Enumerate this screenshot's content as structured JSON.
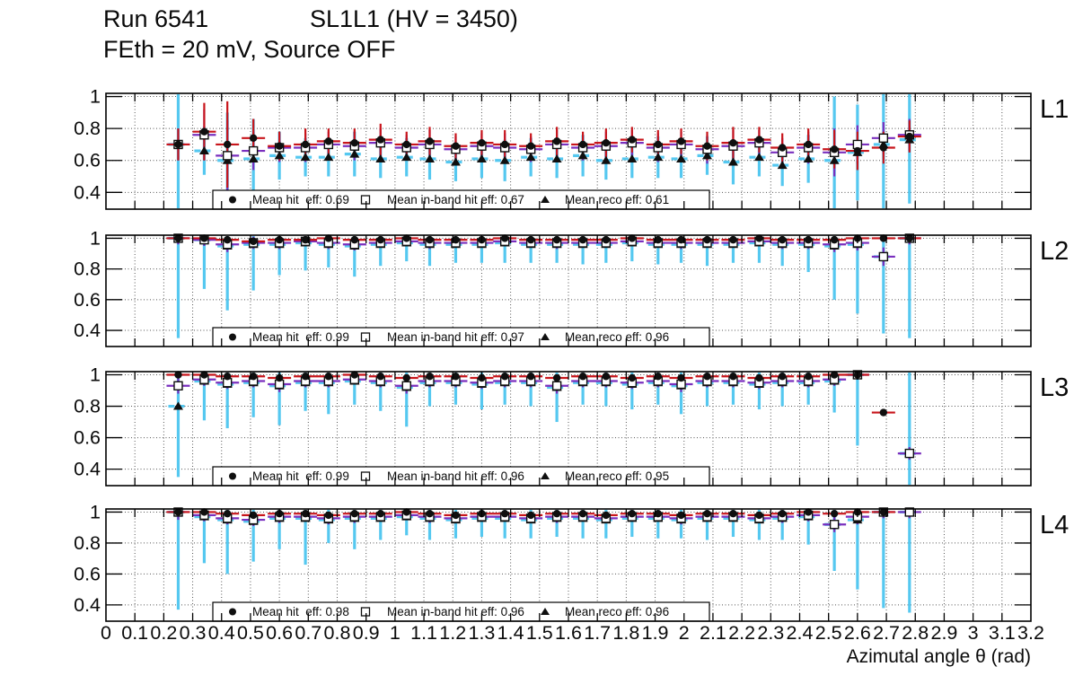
{
  "title": {
    "run": "Run 6541",
    "chamber": "SL1L1 (HV = 3450)",
    "conditions": "FEth = 20 mV, Source OFF"
  },
  "colors": {
    "hit": "#c8151b",
    "inband": "#7a2fbe",
    "reco": "#55c8f0",
    "marker": "#0f0f0f",
    "grid": "#555555",
    "frame": "#000000"
  },
  "chart_data": {
    "type": "errorbar",
    "title": "Run 6541  SL1L1 (HV = 3450)  FEth = 20 mV, Source OFF",
    "xlabel": "Azimutal angle θ (rad)",
    "ylabel": "",
    "xlim": [
      0,
      3.2
    ],
    "ylim": [
      0.295,
      1.02
    ],
    "xtick_step": 0.1,
    "yticks": [
      0.4,
      0.6,
      0.8,
      1
    ],
    "grid": "dotted",
    "legend_position": "bottom-inside",
    "x": [
      0.25,
      0.34,
      0.42,
      0.51,
      0.6,
      0.69,
      0.77,
      0.86,
      0.95,
      1.04,
      1.12,
      1.21,
      1.3,
      1.38,
      1.47,
      1.56,
      1.65,
      1.73,
      1.82,
      1.91,
      1.99,
      2.08,
      2.17,
      2.26,
      2.34,
      2.43,
      2.52,
      2.6,
      2.69,
      2.78
    ],
    "panels": [
      {
        "label": "L1",
        "legend": [
          {
            "marker": "filled-circle",
            "label": "Mean hit  eff: 0.69"
          },
          {
            "marker": "open-square",
            "label": "Mean in-band hit eff: 0.67"
          },
          {
            "marker": "filled-triangle",
            "label": "Mean reco eff: 0.61"
          }
        ],
        "series": [
          {
            "name": "hit",
            "marker": "filled-circle",
            "color_key": "hit",
            "y": [
              0.7,
              0.78,
              0.7,
              0.74,
              0.69,
              0.7,
              0.72,
              0.71,
              0.73,
              0.7,
              0.72,
              0.69,
              0.71,
              0.7,
              0.69,
              0.72,
              0.7,
              0.71,
              0.73,
              0.7,
              0.72,
              0.69,
              0.71,
              0.73,
              0.68,
              0.7,
              0.67,
              0.66,
              0.68,
              0.75
            ],
            "ey": [
              0.1,
              0.18,
              0.27,
              0.12,
              0.09,
              0.1,
              0.08,
              0.09,
              0.1,
              0.08,
              0.09,
              0.08,
              0.08,
              0.09,
              0.08,
              0.09,
              0.08,
              0.09,
              0.08,
              0.09,
              0.08,
              0.09,
              0.1,
              0.08,
              0.09,
              0.1,
              0.12,
              0.12,
              0.1,
              0.1
            ]
          },
          {
            "name": "inband",
            "marker": "open-square",
            "color_key": "inband",
            "y": [
              0.7,
              0.76,
              0.63,
              0.66,
              0.68,
              0.68,
              0.7,
              0.69,
              0.71,
              0.68,
              0.7,
              0.67,
              0.69,
              0.68,
              0.67,
              0.7,
              0.68,
              0.69,
              0.71,
              0.68,
              0.7,
              0.67,
              0.69,
              0.71,
              0.65,
              0.68,
              0.65,
              0.7,
              0.74,
              0.76
            ],
            "ey": [
              0.1,
              0.16,
              0.22,
              0.12,
              0.09,
              0.09,
              0.08,
              0.09,
              0.09,
              0.08,
              0.09,
              0.08,
              0.08,
              0.09,
              0.08,
              0.09,
              0.08,
              0.09,
              0.08,
              0.09,
              0.08,
              0.09,
              0.1,
              0.08,
              0.09,
              0.1,
              0.15,
              0.12,
              0.1,
              0.1
            ]
          },
          {
            "name": "reco",
            "marker": "filled-triangle",
            "color_key": "reco",
            "y": [
              0.7,
              0.66,
              0.6,
              0.61,
              0.63,
              0.62,
              0.62,
              0.64,
              0.61,
              0.62,
              0.61,
              0.59,
              0.61,
              0.6,
              0.62,
              0.61,
              0.63,
              0.6,
              0.61,
              0.62,
              0.61,
              0.63,
              0.59,
              0.62,
              0.57,
              0.61,
              0.6,
              0.65,
              0.7,
              0.73
            ],
            "ey": [
              0.4,
              0.15,
              0.3,
              0.25,
              0.15,
              0.12,
              0.12,
              0.14,
              0.12,
              0.12,
              0.13,
              0.12,
              0.12,
              0.13,
              0.12,
              0.12,
              0.13,
              0.12,
              0.12,
              0.13,
              0.12,
              0.12,
              0.14,
              0.12,
              0.13,
              0.15,
              0.4,
              0.3,
              0.4,
              0.4
            ]
          }
        ]
      },
      {
        "label": "L2",
        "legend": [
          {
            "marker": "filled-circle",
            "label": "Mean hit  eff: 0.99"
          },
          {
            "marker": "open-square",
            "label": "Mean in-band hit eff: 0.97"
          },
          {
            "marker": "filled-triangle",
            "label": "Mean reco eff: 0.96"
          }
        ],
        "series": [
          {
            "name": "hit",
            "marker": "filled-circle",
            "color_key": "hit",
            "y": [
              1.0,
              1.0,
              0.99,
              0.98,
              0.99,
              0.99,
              1.0,
              0.99,
              0.99,
              1.0,
              0.99,
              0.99,
              0.99,
              1.0,
              0.99,
              0.99,
              0.99,
              0.99,
              1.0,
              0.99,
              0.99,
              0.99,
              0.99,
              1.0,
              0.99,
              0.99,
              0.99,
              1.0,
              1.0,
              1.0
            ],
            "ey": [
              0.02,
              0.02,
              0.02,
              0.02,
              0.02,
              0.02,
              0.02,
              0.02,
              0.02,
              0.02,
              0.02,
              0.02,
              0.02,
              0.02,
              0.02,
              0.02,
              0.02,
              0.02,
              0.02,
              0.02,
              0.02,
              0.02,
              0.02,
              0.02,
              0.02,
              0.02,
              0.02,
              0.02,
              0.02,
              0.02
            ]
          },
          {
            "name": "inband",
            "marker": "open-square",
            "color_key": "inband",
            "y": [
              1.0,
              0.99,
              0.96,
              0.97,
              0.97,
              0.98,
              0.97,
              0.96,
              0.97,
              0.98,
              0.97,
              0.97,
              0.97,
              0.98,
              0.97,
              0.97,
              0.97,
              0.97,
              0.98,
              0.97,
              0.97,
              0.97,
              0.97,
              0.98,
              0.97,
              0.97,
              0.96,
              0.97,
              0.88,
              1.0
            ],
            "ey": [
              0.04,
              0.04,
              0.05,
              0.04,
              0.04,
              0.03,
              0.04,
              0.04,
              0.03,
              0.03,
              0.04,
              0.03,
              0.03,
              0.03,
              0.03,
              0.04,
              0.03,
              0.03,
              0.03,
              0.03,
              0.04,
              0.03,
              0.03,
              0.03,
              0.04,
              0.04,
              0.05,
              0.05,
              0.06,
              0.04
            ]
          },
          {
            "name": "reco",
            "marker": "filled-triangle",
            "color_key": "reco",
            "y": [
              1.0,
              0.99,
              0.95,
              0.96,
              0.96,
              0.97,
              0.96,
              0.95,
              0.96,
              0.97,
              0.96,
              0.96,
              0.96,
              0.97,
              0.96,
              0.96,
              0.96,
              0.96,
              0.97,
              0.96,
              0.96,
              0.96,
              0.96,
              0.97,
              0.96,
              0.96,
              0.95,
              0.96,
              0.88,
              1.0
            ],
            "ey": [
              0.65,
              0.32,
              0.42,
              0.3,
              0.2,
              0.18,
              0.15,
              0.2,
              0.14,
              0.12,
              0.14,
              0.12,
              0.12,
              0.13,
              0.12,
              0.12,
              0.13,
              0.12,
              0.12,
              0.13,
              0.12,
              0.14,
              0.12,
              0.13,
              0.14,
              0.18,
              0.35,
              0.45,
              0.5,
              0.65
            ]
          }
        ]
      },
      {
        "label": "L3",
        "legend": [
          {
            "marker": "filled-circle",
            "label": "Mean hit  eff: 0.99"
          },
          {
            "marker": "open-square",
            "label": "Mean in-band hit eff: 0.96"
          },
          {
            "marker": "filled-triangle",
            "label": "Mean reco eff: 0.95"
          }
        ],
        "series": [
          {
            "name": "hit",
            "marker": "filled-circle",
            "color_key": "hit",
            "y": [
              1.0,
              1.0,
              0.99,
              0.99,
              0.98,
              0.99,
              0.99,
              1.0,
              0.99,
              0.98,
              0.99,
              0.99,
              0.98,
              0.99,
              0.99,
              0.98,
              0.99,
              0.99,
              0.98,
              0.99,
              0.98,
              0.99,
              0.99,
              0.98,
              0.99,
              0.99,
              1.0,
              1.0,
              0.76,
              null
            ],
            "ey": [
              0.02,
              0.02,
              0.02,
              0.02,
              0.02,
              0.02,
              0.02,
              0.02,
              0.02,
              0.02,
              0.02,
              0.02,
              0.02,
              0.02,
              0.02,
              0.02,
              0.02,
              0.02,
              0.02,
              0.02,
              0.02,
              0.02,
              0.02,
              0.02,
              0.02,
              0.02,
              0.02,
              0.02,
              0.01,
              null
            ]
          },
          {
            "name": "inband",
            "marker": "open-square",
            "color_key": "inband",
            "y": [
              0.93,
              0.97,
              0.95,
              0.96,
              0.94,
              0.96,
              0.96,
              0.97,
              0.96,
              0.93,
              0.96,
              0.96,
              0.95,
              0.96,
              0.96,
              0.93,
              0.96,
              0.96,
              0.95,
              0.96,
              0.94,
              0.96,
              0.96,
              0.95,
              0.96,
              0.96,
              0.97,
              1.0,
              null,
              0.5
            ],
            "ey": [
              0.05,
              0.04,
              0.04,
              0.04,
              0.05,
              0.04,
              0.04,
              0.03,
              0.04,
              0.05,
              0.04,
              0.04,
              0.04,
              0.04,
              0.04,
              0.05,
              0.04,
              0.04,
              0.04,
              0.04,
              0.05,
              0.04,
              0.04,
              0.04,
              0.04,
              0.04,
              0.04,
              0.03,
              null,
              0.04
            ]
          },
          {
            "name": "reco",
            "marker": "filled-triangle",
            "color_key": "reco",
            "y": [
              0.8,
              0.96,
              0.94,
              0.95,
              0.93,
              0.95,
              0.95,
              0.96,
              0.95,
              0.92,
              0.95,
              0.95,
              0.94,
              0.95,
              0.95,
              0.92,
              0.95,
              0.95,
              0.94,
              0.95,
              0.93,
              0.95,
              0.95,
              0.94,
              0.95,
              0.95,
              0.96,
              1.0,
              null,
              0.5
            ],
            "ey": [
              0.45,
              0.25,
              0.28,
              0.22,
              0.25,
              0.18,
              0.2,
              0.15,
              0.18,
              0.25,
              0.15,
              0.14,
              0.16,
              0.14,
              0.15,
              0.22,
              0.14,
              0.15,
              0.16,
              0.14,
              0.18,
              0.15,
              0.14,
              0.16,
              0.15,
              0.14,
              0.2,
              0.45,
              null,
              0.65
            ]
          }
        ]
      },
      {
        "label": "L4",
        "legend": [
          {
            "marker": "filled-circle",
            "label": "Mean hit  eff: 0.98"
          },
          {
            "marker": "open-square",
            "label": "Mean in-band hit eff: 0.96"
          },
          {
            "marker": "filled-triangle",
            "label": "Mean reco eff: 0.96"
          }
        ],
        "series": [
          {
            "name": "hit",
            "marker": "filled-circle",
            "color_key": "hit",
            "y": [
              1.0,
              1.0,
              0.99,
              0.98,
              0.99,
              0.99,
              0.98,
              0.99,
              0.99,
              1.0,
              0.99,
              0.98,
              0.99,
              0.99,
              0.98,
              0.99,
              0.99,
              0.98,
              0.99,
              0.99,
              0.98,
              0.99,
              0.99,
              0.98,
              0.99,
              1.0,
              0.99,
              1.0,
              1.0,
              null
            ],
            "ey": [
              0.02,
              0.02,
              0.02,
              0.02,
              0.02,
              0.02,
              0.02,
              0.02,
              0.02,
              0.02,
              0.02,
              0.02,
              0.02,
              0.02,
              0.02,
              0.02,
              0.02,
              0.02,
              0.02,
              0.02,
              0.02,
              0.02,
              0.02,
              0.02,
              0.02,
              0.02,
              0.02,
              0.02,
              0.02,
              null
            ]
          },
          {
            "name": "inband",
            "marker": "open-square",
            "color_key": "inband",
            "y": [
              1.0,
              0.98,
              0.96,
              0.95,
              0.97,
              0.97,
              0.96,
              0.97,
              0.97,
              0.98,
              0.97,
              0.96,
              0.97,
              0.97,
              0.96,
              0.97,
              0.97,
              0.96,
              0.97,
              0.97,
              0.96,
              0.97,
              0.97,
              0.96,
              0.97,
              0.98,
              0.92,
              0.97,
              1.0,
              1.0
            ],
            "ey": [
              0.05,
              0.04,
              0.04,
              0.04,
              0.04,
              0.03,
              0.04,
              0.04,
              0.03,
              0.03,
              0.04,
              0.03,
              0.03,
              0.03,
              0.03,
              0.04,
              0.03,
              0.03,
              0.03,
              0.03,
              0.04,
              0.03,
              0.03,
              0.03,
              0.04,
              0.04,
              0.05,
              0.05,
              0.04,
              0.04
            ]
          },
          {
            "name": "reco",
            "marker": "filled-triangle",
            "color_key": "reco",
            "y": [
              1.0,
              0.97,
              0.95,
              0.94,
              0.96,
              0.96,
              0.95,
              0.96,
              0.96,
              0.97,
              0.96,
              0.95,
              0.96,
              0.96,
              0.95,
              0.96,
              0.96,
              0.95,
              0.96,
              0.96,
              0.95,
              0.96,
              0.96,
              0.95,
              0.96,
              0.97,
              0.92,
              0.95,
              1.0,
              1.0
            ],
            "ey": [
              0.63,
              0.3,
              0.35,
              0.26,
              0.2,
              0.3,
              0.15,
              0.2,
              0.14,
              0.12,
              0.14,
              0.12,
              0.12,
              0.13,
              0.12,
              0.12,
              0.13,
              0.12,
              0.12,
              0.13,
              0.12,
              0.14,
              0.12,
              0.13,
              0.14,
              0.18,
              0.3,
              0.45,
              0.62,
              0.65
            ]
          }
        ]
      }
    ]
  }
}
